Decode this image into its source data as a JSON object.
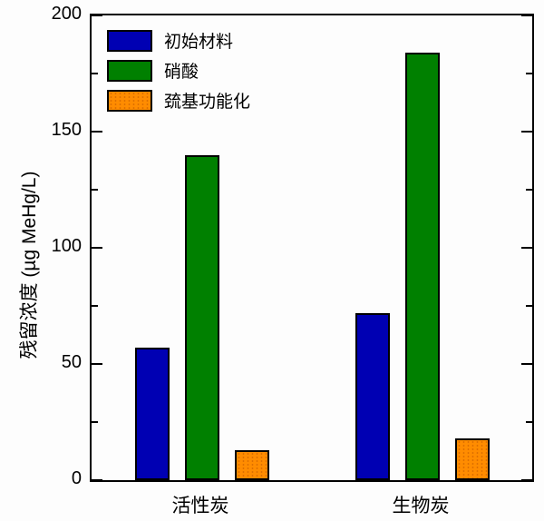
{
  "chart_data": {
    "type": "bar",
    "title": "",
    "ylabel": "残留浓度 (µg MeHg/L)",
    "xlabel": "",
    "categories": [
      "活性炭",
      "生物炭"
    ],
    "series": [
      {
        "name": "初始材料",
        "color": "#0000B3",
        "pattern": "solid",
        "values": [
          57,
          72
        ]
      },
      {
        "name": "硝酸",
        "color": "#008000",
        "pattern": "solid",
        "values": [
          140,
          184
        ]
      },
      {
        "name": "巯基功能化",
        "color": "#FF8C00",
        "pattern": "dotted",
        "values": [
          13,
          18
        ]
      }
    ],
    "ylim": [
      0,
      200
    ],
    "yticks_major": [
      0,
      50,
      100,
      150,
      200
    ],
    "yticks_minor": [
      25,
      75,
      125,
      175
    ],
    "grid": false,
    "legend_position": "top-left",
    "axis_color": "#000000",
    "background_color": "#fdfdfd"
  }
}
